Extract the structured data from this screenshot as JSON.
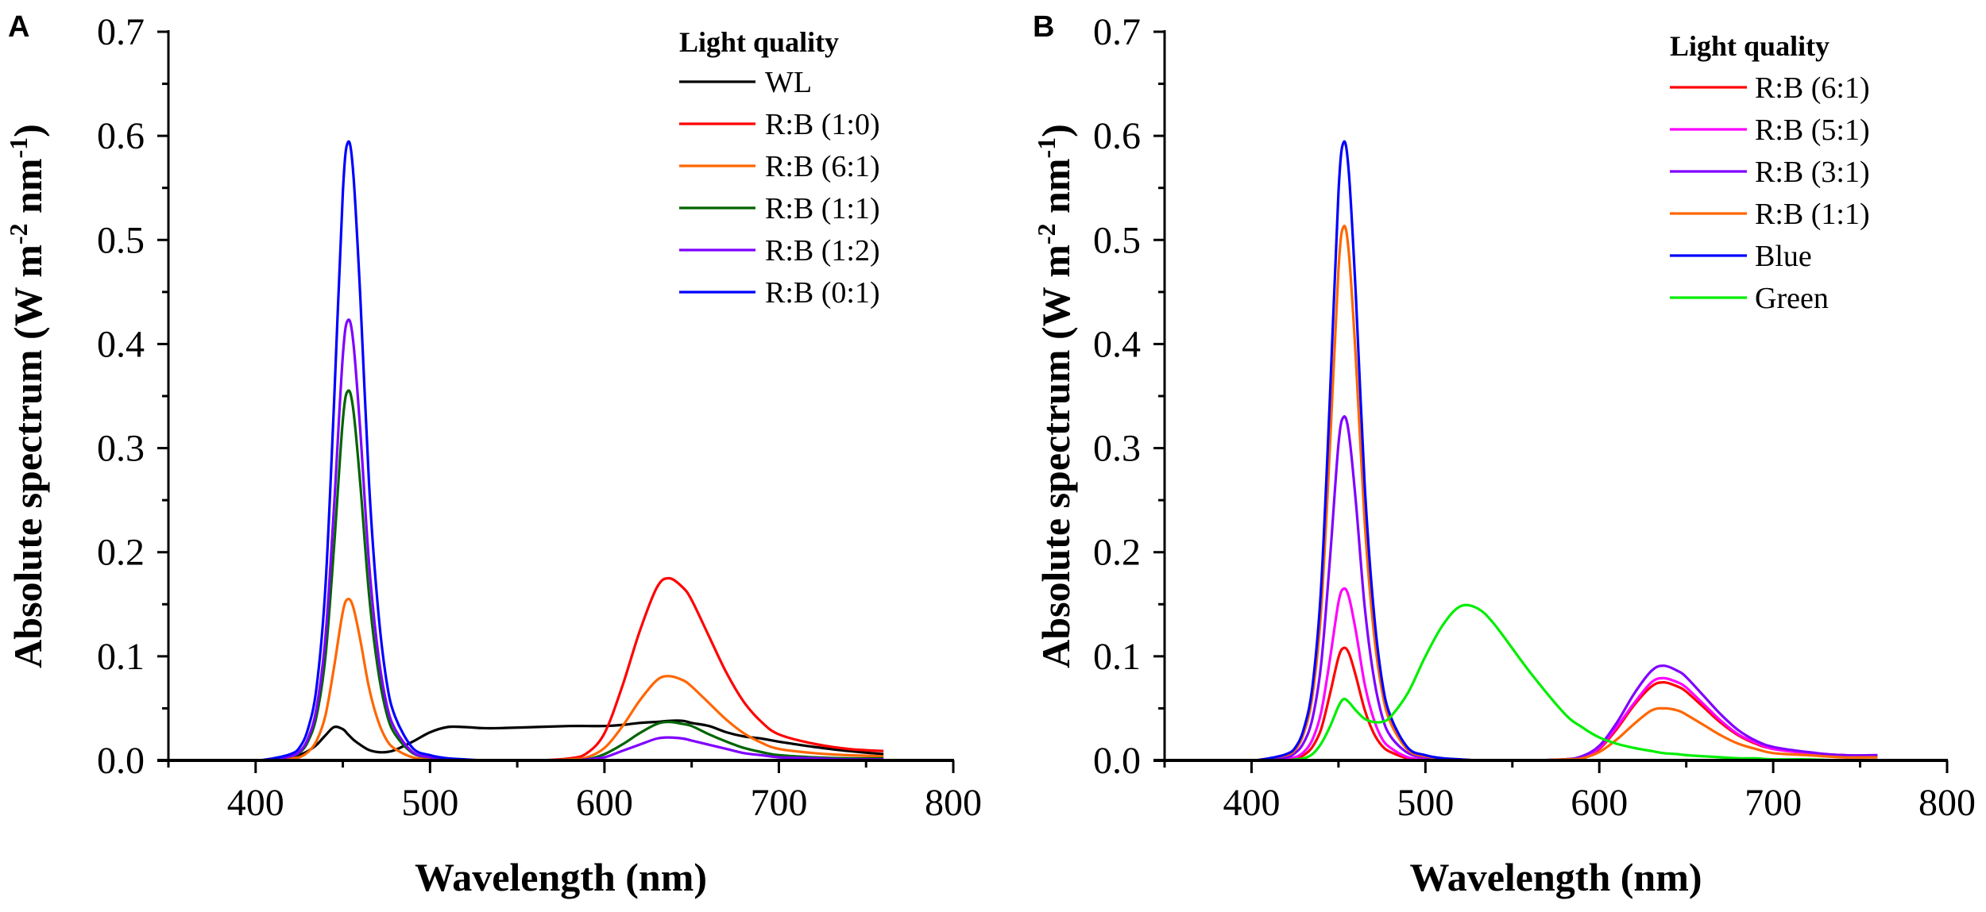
{
  "chart_data": [
    {
      "panel": "A",
      "type": "line",
      "xlabel": "Wavelength (nm)",
      "ylabel": {
        "main": "Absolute spectrum (W m",
        "sup1": "-2",
        "mid": " nm",
        "sup2": "-1",
        "end": ")"
      },
      "xlim": [
        350,
        800
      ],
      "ylim": [
        0,
        0.7
      ],
      "xticks": [
        "400",
        "500",
        "600",
        "700",
        "800"
      ],
      "yticks": [
        "0.0",
        "0.1",
        "0.2",
        "0.3",
        "0.4",
        "0.5",
        "0.6",
        "0.7"
      ],
      "grid": false,
      "legend": {
        "title": "Light quality",
        "placement": "top-right"
      },
      "x": [
        380,
        400,
        410,
        420,
        425,
        430,
        435,
        440,
        445,
        450,
        453,
        456,
        460,
        465,
        470,
        475,
        480,
        490,
        500,
        510,
        520,
        530,
        540,
        560,
        580,
        590,
        600,
        610,
        620,
        630,
        637,
        645,
        650,
        660,
        670,
        680,
        690,
        700,
        720,
        740,
        760
      ],
      "series": [
        {
          "name": "WL",
          "color": "#000000",
          "values": [
            0,
            0,
            0.001,
            0.003,
            0.005,
            0.009,
            0.015,
            0.024,
            0.032,
            0.03,
            0.025,
            0.02,
            0.015,
            0.01,
            0.008,
            0.008,
            0.01,
            0.018,
            0.027,
            0.032,
            0.032,
            0.031,
            0.031,
            0.032,
            0.033,
            0.033,
            0.033,
            0.034,
            0.036,
            0.037,
            0.038,
            0.038,
            0.036,
            0.033,
            0.027,
            0.023,
            0.021,
            0.018,
            0.013,
            0.009,
            0.006
          ]
        },
        {
          "name": "R:B (1:0)",
          "color": "#ff0000",
          "values": [
            0,
            0,
            0,
            0,
            0,
            0,
            0,
            0,
            0,
            0,
            0,
            0,
            0,
            0,
            0,
            0,
            0,
            0,
            0,
            0,
            0,
            0,
            0,
            0,
            0.002,
            0.007,
            0.026,
            0.07,
            0.123,
            0.166,
            0.175,
            0.166,
            0.154,
            0.119,
            0.084,
            0.056,
            0.037,
            0.025,
            0.016,
            0.011,
            0.009
          ]
        },
        {
          "name": "R:B (6:1)",
          "color": "#ff6600",
          "values": [
            0,
            0,
            0,
            0.002,
            0.003,
            0.008,
            0.019,
            0.043,
            0.09,
            0.143,
            0.155,
            0.147,
            0.116,
            0.07,
            0.039,
            0.02,
            0.011,
            0.003,
            0.001,
            0,
            0,
            0,
            0,
            0,
            0.001,
            0.003,
            0.012,
            0.032,
            0.057,
            0.077,
            0.081,
            0.077,
            0.071,
            0.055,
            0.039,
            0.026,
            0.017,
            0.011,
            0.007,
            0.005,
            0.004
          ]
        },
        {
          "name": "R:B (1:1)",
          "color": "#006400",
          "values": [
            0,
            0,
            0.001,
            0.004,
            0.007,
            0.018,
            0.043,
            0.099,
            0.206,
            0.327,
            0.355,
            0.337,
            0.266,
            0.16,
            0.089,
            0.046,
            0.025,
            0.007,
            0.003,
            0.001,
            0,
            0,
            0,
            0,
            0,
            0.001,
            0.006,
            0.015,
            0.026,
            0.035,
            0.037,
            0.035,
            0.033,
            0.025,
            0.018,
            0.012,
            0.008,
            0.005,
            0.003,
            0.002,
            0.002
          ]
        },
        {
          "name": "R:B (1:2)",
          "color": "#7f00ff",
          "values": [
            0,
            0,
            0.001,
            0.004,
            0.008,
            0.021,
            0.051,
            0.118,
            0.245,
            0.389,
            0.423,
            0.402,
            0.317,
            0.19,
            0.106,
            0.055,
            0.03,
            0.008,
            0.003,
            0.001,
            0,
            0,
            0,
            0,
            0,
            0.001,
            0.003,
            0.009,
            0.015,
            0.021,
            0.022,
            0.021,
            0.019,
            0.015,
            0.011,
            0.007,
            0.005,
            0.003,
            0.002,
            0.001,
            0.001
          ]
        },
        {
          "name": "R:B (0:1)",
          "color": "#0000ff",
          "values": [
            0,
            0,
            0.002,
            0.006,
            0.012,
            0.03,
            0.071,
            0.166,
            0.345,
            0.546,
            0.594,
            0.564,
            0.446,
            0.267,
            0.149,
            0.077,
            0.042,
            0.012,
            0.005,
            0.002,
            0.001,
            0,
            0,
            0,
            0,
            0,
            0,
            0,
            0,
            0,
            0,
            0,
            0,
            0,
            0,
            0,
            0,
            0,
            0,
            0,
            0
          ]
        }
      ]
    },
    {
      "panel": "B",
      "type": "line",
      "xlabel": "Wavelength (nm)",
      "ylabel": {
        "main": "Absolute spectrum (W m",
        "sup1": "-2",
        "mid": " nm",
        "sup2": "-1",
        "end": ")"
      },
      "xlim": [
        350,
        800
      ],
      "ylim": [
        0,
        0.7
      ],
      "xticks": [
        "400",
        "500",
        "600",
        "700",
        "800"
      ],
      "yticks": [
        "0.0",
        "0.1",
        "0.2",
        "0.3",
        "0.4",
        "0.5",
        "0.6",
        "0.7"
      ],
      "grid": false,
      "legend": {
        "title": "Light quality",
        "placement": "top-right"
      },
      "x": [
        380,
        400,
        410,
        420,
        425,
        430,
        435,
        440,
        445,
        450,
        453,
        456,
        460,
        465,
        470,
        475,
        480,
        490,
        500,
        510,
        520,
        530,
        540,
        560,
        580,
        590,
        600,
        610,
        620,
        630,
        637,
        645,
        650,
        660,
        670,
        680,
        690,
        700,
        720,
        740,
        760
      ],
      "series": [
        {
          "name": "R:B (6:1)",
          "color": "#ff0000",
          "values": [
            0,
            0,
            0,
            0.001,
            0.002,
            0.005,
            0.013,
            0.03,
            0.063,
            0.099,
            0.108,
            0.103,
            0.081,
            0.049,
            0.027,
            0.014,
            0.008,
            0.002,
            0.001,
            0,
            0,
            0,
            0,
            0,
            0.001,
            0.003,
            0.011,
            0.03,
            0.053,
            0.071,
            0.075,
            0.071,
            0.066,
            0.051,
            0.036,
            0.024,
            0.016,
            0.011,
            0.007,
            0.005,
            0.004
          ]
        },
        {
          "name": "R:B (5:1)",
          "color": "#ff00ff",
          "values": [
            0,
            0,
            0,
            0.002,
            0.003,
            0.008,
            0.02,
            0.046,
            0.096,
            0.152,
            0.165,
            0.157,
            0.124,
            0.074,
            0.041,
            0.021,
            0.012,
            0.003,
            0.001,
            0,
            0,
            0,
            0,
            0,
            0.001,
            0.003,
            0.012,
            0.032,
            0.055,
            0.075,
            0.079,
            0.075,
            0.07,
            0.054,
            0.038,
            0.025,
            0.017,
            0.011,
            0.007,
            0.005,
            0.004
          ]
        },
        {
          "name": "R:B (3:1)",
          "color": "#7f00ff",
          "values": [
            0,
            0,
            0.001,
            0.003,
            0.007,
            0.017,
            0.04,
            0.092,
            0.191,
            0.304,
            0.33,
            0.314,
            0.248,
            0.149,
            0.083,
            0.043,
            0.023,
            0.007,
            0.003,
            0.001,
            0,
            0,
            0,
            0,
            0.001,
            0.004,
            0.014,
            0.036,
            0.064,
            0.086,
            0.091,
            0.086,
            0.08,
            0.062,
            0.044,
            0.029,
            0.019,
            0.013,
            0.008,
            0.005,
            0.005
          ]
        },
        {
          "name": "R:B (1:1)",
          "color": "#ff6600",
          "values": [
            0,
            0,
            0.002,
            0.005,
            0.01,
            0.026,
            0.062,
            0.144,
            0.298,
            0.472,
            0.513,
            0.487,
            0.385,
            0.231,
            0.128,
            0.067,
            0.036,
            0.01,
            0.004,
            0.002,
            0.001,
            0,
            0,
            0,
            0.001,
            0.002,
            0.008,
            0.02,
            0.035,
            0.048,
            0.05,
            0.048,
            0.044,
            0.034,
            0.024,
            0.016,
            0.011,
            0.007,
            0.005,
            0.003,
            0.003
          ]
        },
        {
          "name": "Blue",
          "color": "#0000ff",
          "values": [
            0,
            0,
            0.002,
            0.006,
            0.012,
            0.03,
            0.071,
            0.166,
            0.345,
            0.546,
            0.594,
            0.564,
            0.446,
            0.267,
            0.149,
            0.077,
            0.042,
            0.012,
            0.005,
            0.002,
            0.001,
            0,
            0,
            0,
            0,
            0,
            0,
            0,
            0,
            0,
            0,
            0,
            0,
            0,
            0,
            0,
            0,
            0,
            0,
            0,
            0
          ]
        },
        {
          "name": "Green",
          "color": "#00ee00",
          "values": [
            0,
            0,
            0,
            0,
            0.001,
            0.002,
            0.006,
            0.016,
            0.032,
            0.052,
            0.059,
            0.056,
            0.048,
            0.04,
            0.037,
            0.037,
            0.042,
            0.065,
            0.1,
            0.13,
            0.148,
            0.146,
            0.13,
            0.085,
            0.045,
            0.032,
            0.022,
            0.016,
            0.012,
            0.009,
            0.007,
            0.006,
            0.005,
            0.004,
            0.003,
            0.002,
            0.002,
            0.001,
            0.001,
            0,
            0
          ]
        }
      ]
    }
  ]
}
